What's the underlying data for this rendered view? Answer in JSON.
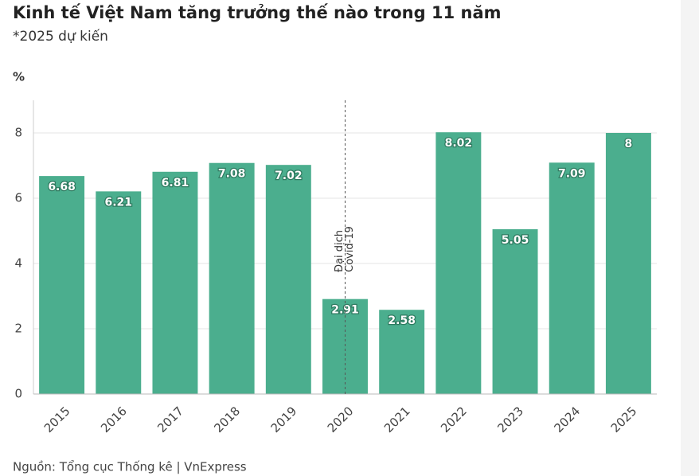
{
  "chart_data": {
    "type": "bar",
    "title": "Kinh tế Việt Nam tăng trưởng thế nào trong 11 năm",
    "subtitle": "*2025 dự kiến",
    "y_label": "%",
    "source": "Nguồn: Tổng cục Thống kê | VnExpress",
    "categories": [
      "2015",
      "2016",
      "2017",
      "2018",
      "2019",
      "2020",
      "2021",
      "2022",
      "2023",
      "2024",
      "2025"
    ],
    "values": [
      6.68,
      6.21,
      6.81,
      7.08,
      7.02,
      2.91,
      2.58,
      8.02,
      5.05,
      7.09,
      8
    ],
    "color": "#4bae8e",
    "ylim": [
      0,
      9
    ],
    "yticks": [
      0,
      2,
      4,
      6,
      8
    ],
    "grid": true,
    "annotation": {
      "category": "2020",
      "lines": [
        "Đại dịch",
        "Covid-19"
      ]
    }
  }
}
